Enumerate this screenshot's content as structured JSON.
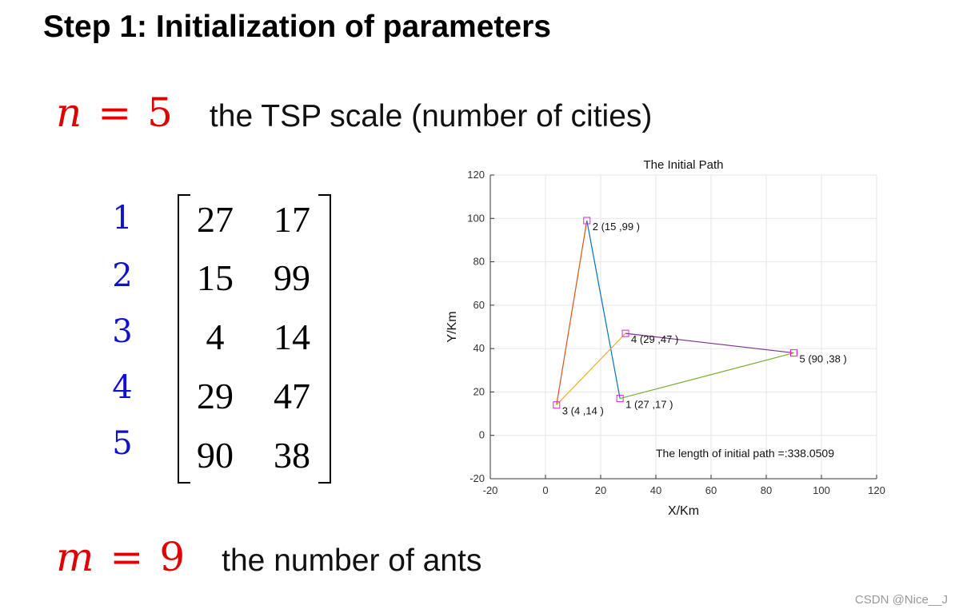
{
  "title": "Step 1: Initialization of parameters",
  "n_line": {
    "var": "n",
    "eq": "=",
    "value": "5",
    "desc": "the TSP scale (number of cities)"
  },
  "m_line": {
    "var": "m",
    "eq": "=",
    "value": "9",
    "desc": "the number of ants"
  },
  "matrix": {
    "indices": [
      "1",
      "2",
      "3",
      "4",
      "5"
    ],
    "rows": [
      [
        "27",
        "17"
      ],
      [
        "15",
        "99"
      ],
      [
        "4",
        "14"
      ],
      [
        "29",
        "47"
      ],
      [
        "90",
        "38"
      ]
    ]
  },
  "watermark": "CSDN @Nice__J",
  "colors": {
    "math_red": "#e00000",
    "index_blue": "#1010d0",
    "marker": "#e020e0"
  },
  "chart_data": {
    "type": "line",
    "title": "The Initial Path",
    "xlabel": "X/Km",
    "ylabel": "Y/Km",
    "xlim": [
      -20,
      120
    ],
    "ylim": [
      -20,
      120
    ],
    "xticks": [
      "-20",
      "0",
      "20",
      "40",
      "60",
      "80",
      "100",
      "120"
    ],
    "yticks": [
      "-20",
      "0",
      "20",
      "40",
      "60",
      "80",
      "100",
      "120"
    ],
    "grid": true,
    "points": [
      {
        "x": 27,
        "y": 17,
        "label": "1 (27 ,17 )"
      },
      {
        "x": 15,
        "y": 99,
        "label": "2 (15 ,99 )"
      },
      {
        "x": 4,
        "y": 14,
        "label": "3 (4 ,14 )"
      },
      {
        "x": 29,
        "y": 47,
        "label": "4 (29 ,47 )"
      },
      {
        "x": 90,
        "y": 38,
        "label": "5 (90 ,38 )"
      }
    ],
    "segments": [
      {
        "from": 3,
        "to": 2,
        "color": "#d95319"
      },
      {
        "from": 2,
        "to": 1,
        "color": "#0072bd"
      },
      {
        "from": 3,
        "to": 4,
        "color": "#edb120"
      },
      {
        "from": 4,
        "to": 5,
        "color": "#7e2f8e"
      },
      {
        "from": 5,
        "to": 1,
        "color": "#77ac30"
      }
    ],
    "annotation": "The length of initial path =:338.0509"
  }
}
